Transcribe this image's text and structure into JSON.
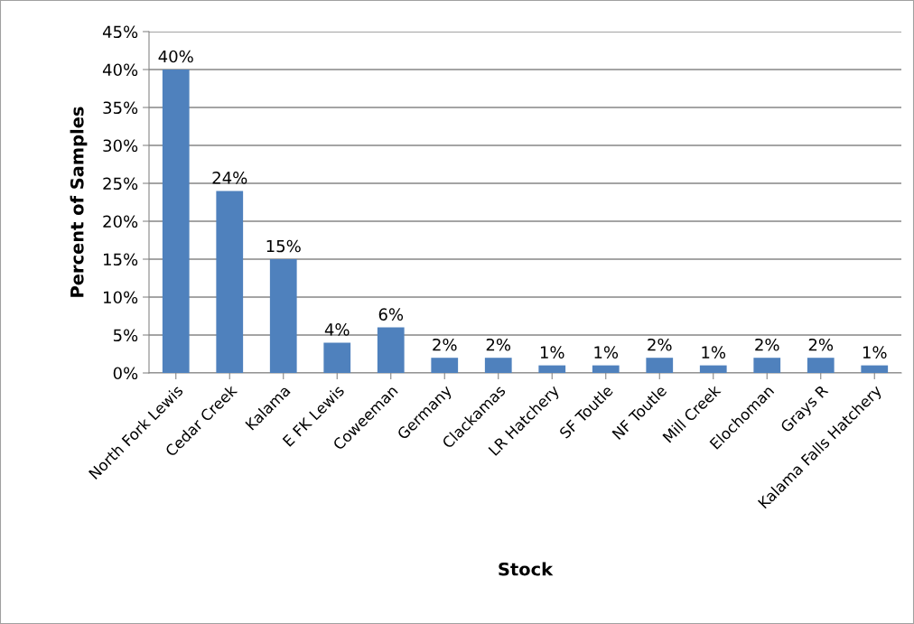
{
  "chart_data": {
    "type": "bar",
    "xlabel": "Stock",
    "ylabel": "Percent of Samples",
    "categories": [
      "North Fork Lewis",
      "Cedar Creek",
      "Kalama",
      "E FK Lewis",
      "Coweeman",
      "Germany",
      "Clackamas",
      "LR Hatchery",
      "SF Toutle",
      "NF Toutle",
      "Mill Creek",
      "Elochoman",
      "Grays R",
      "Kalama Falls Hatchery"
    ],
    "values": [
      40,
      24,
      15,
      4,
      6,
      2,
      2,
      1,
      1,
      2,
      1,
      2,
      2,
      1
    ],
    "value_labels": [
      "40%",
      "24%",
      "15%",
      "4%",
      "6%",
      "2%",
      "2%",
      "1%",
      "1%",
      "2%",
      "1%",
      "2%",
      "2%",
      "1%"
    ],
    "color": "#4f81bd",
    "ylim": [
      0,
      45
    ],
    "yticks": [
      {
        "value": 0,
        "label": "0%"
      },
      {
        "value": 5,
        "label": "5%"
      },
      {
        "value": 10,
        "label": "10%"
      },
      {
        "value": 15,
        "label": "15%"
      },
      {
        "value": 20,
        "label": "20%"
      },
      {
        "value": 25,
        "label": "25%"
      },
      {
        "value": 30,
        "label": "30%"
      },
      {
        "value": 35,
        "label": "35%"
      },
      {
        "value": 40,
        "label": "40%"
      },
      {
        "value": 45,
        "label": "45%"
      }
    ],
    "grid": "y",
    "legend": false
  }
}
